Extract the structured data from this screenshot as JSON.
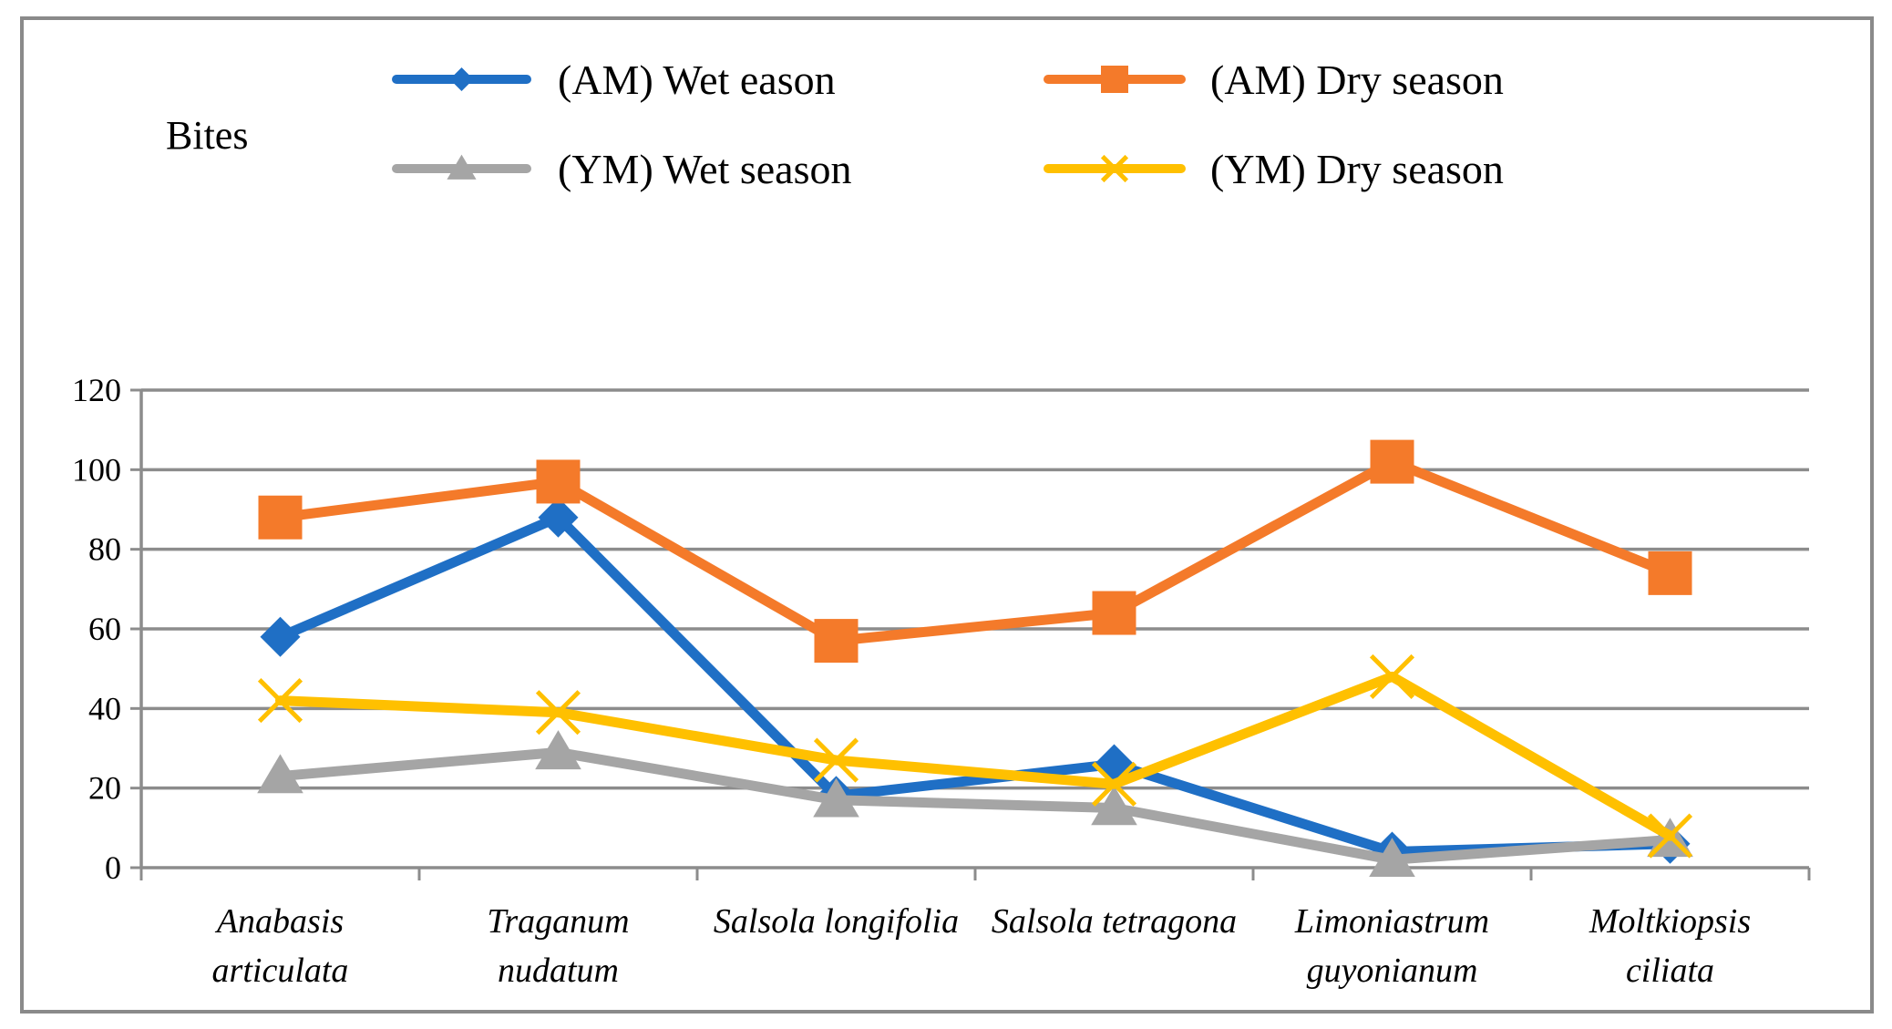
{
  "chart_data": {
    "type": "line",
    "ylabel": "Bites",
    "ylim": [
      0,
      120
    ],
    "yticks": [
      "0",
      "20",
      "40",
      "60",
      "80",
      "100",
      "120"
    ],
    "grid": true,
    "legend_position": "top",
    "categories": [
      {
        "line1": "Anabasis",
        "line2": "articulata"
      },
      {
        "line1": "Traganum",
        "line2": "nudatum"
      },
      {
        "line1": "Salsola longifolia",
        "line2": ""
      },
      {
        "line1": "Salsola tetragona",
        "line2": ""
      },
      {
        "line1": "Limoniastrum",
        "line2": "guyonianum"
      },
      {
        "line1": "Moltkiopsis",
        "line2": "ciliata"
      }
    ],
    "series": [
      {
        "name": "(AM) Wet eason",
        "color": "#1F6FC5",
        "marker": "diamond",
        "values": [
          58,
          88,
          18,
          26,
          4,
          6
        ]
      },
      {
        "name": "(AM)  Dry season",
        "color": "#F47A2A",
        "marker": "square",
        "values": [
          88,
          97,
          57,
          64,
          102,
          74
        ]
      },
      {
        "name": "(YM)  Wet season",
        "color": "#A5A5A5",
        "marker": "triangle",
        "values": [
          23,
          29,
          17,
          15,
          2,
          7
        ]
      },
      {
        "name": "(YM) Dry season",
        "color": "#FFC000",
        "marker": "x",
        "values": [
          42,
          39,
          27,
          21,
          48,
          8
        ]
      }
    ]
  }
}
